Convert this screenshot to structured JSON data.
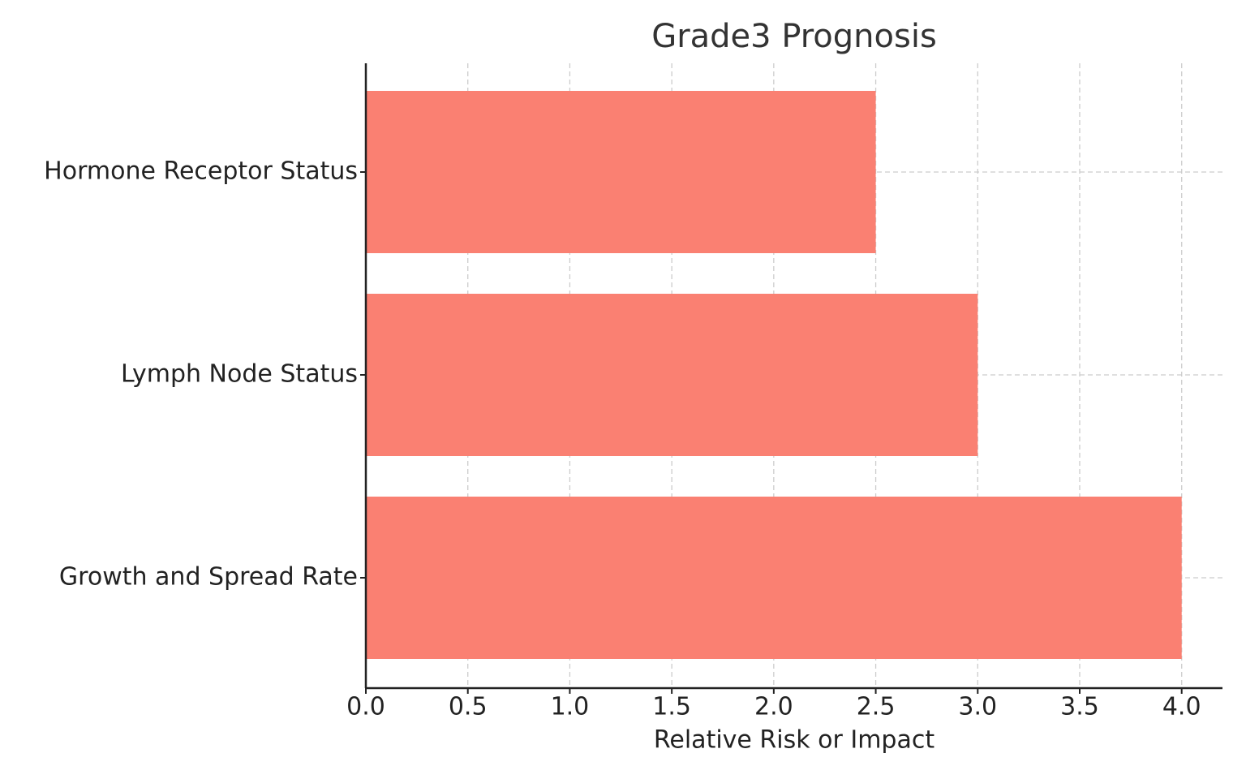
{
  "chart_data": {
    "type": "barh",
    "title": "Grade3 Prognosis",
    "xlabel": "Relative Risk or Impact",
    "categories": [
      "Growth and Spread Rate",
      "Lymph Node Status",
      "Hormone Receptor Status"
    ],
    "values": [
      4,
      3,
      2.5
    ],
    "color": "#fa8072",
    "xlim": [
      0,
      4.2
    ],
    "xticks": [
      {
        "value": 0,
        "label": "0.0"
      },
      0.5,
      {
        "value": 1,
        "label": "1.0"
      },
      1.5,
      {
        "value": 2,
        "label": "2.0"
      },
      2.5,
      {
        "value": 3,
        "label": "3.0"
      },
      3.5,
      {
        "value": 4,
        "label": "4.0"
      }
    ],
    "grid": true
  }
}
